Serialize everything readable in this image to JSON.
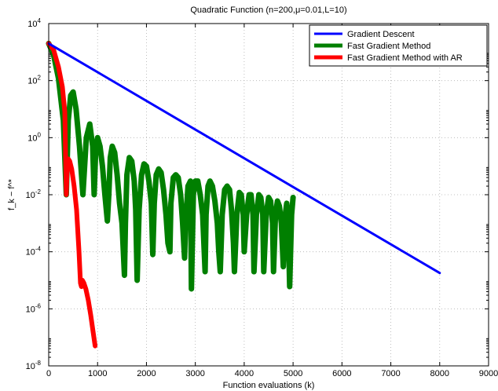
{
  "chart_data": {
    "type": "line",
    "title": "Quadratic Function (n=200,μ=0.01,L=10)",
    "xlabel": "Function evaluations (k)",
    "ylabel": "f_k − f^*",
    "xlim": [
      0,
      9000
    ],
    "ylim": [
      1e-08,
      10000.0
    ],
    "yscale": "log",
    "grid": true,
    "legend_position": "top-right",
    "x_ticks": [
      0,
      1000,
      2000,
      3000,
      4000,
      5000,
      6000,
      7000,
      8000,
      9000
    ],
    "x_tick_labels": [
      "0",
      "1000",
      "2000",
      "3000",
      "4000",
      "5000",
      "6000",
      "7000",
      "8000",
      "9000"
    ],
    "y_ticks": [
      1e-08,
      1e-06,
      0.0001,
      0.01,
      1.0,
      100.0,
      10000.0
    ],
    "y_tick_exponents": [
      "-8",
      "-6",
      "-4",
      "-2",
      "0",
      "2",
      "4"
    ],
    "y_tick_base": "10",
    "series": [
      {
        "name": "Gradient Descent",
        "color": "#0000ff",
        "x": [
          0,
          8000
        ],
        "y": [
          2000,
          1.8e-05
        ]
      },
      {
        "name": "Fast Gradient Method",
        "color": "#007f00",
        "x": [
          0,
          100,
          200,
          300,
          360,
          400,
          450,
          500,
          560,
          630,
          700,
          770,
          840,
          900,
          930,
          960,
          1000,
          1050,
          1100,
          1150,
          1200,
          1230,
          1260,
          1300,
          1350,
          1400,
          1450,
          1500,
          1550,
          1570,
          1600,
          1650,
          1700,
          1750,
          1780,
          1810,
          1850,
          1900,
          1950,
          2000,
          2050,
          2100,
          2130,
          2160,
          2200,
          2250,
          2300,
          2350,
          2400,
          2440,
          2480,
          2500,
          2550,
          2600,
          2650,
          2700,
          2740,
          2780,
          2800,
          2850,
          2900,
          2920,
          2960,
          3000,
          3050,
          3100,
          3150,
          3200,
          3220,
          3260,
          3300,
          3350,
          3400,
          3450,
          3480,
          3510,
          3550,
          3600,
          3650,
          3700,
          3740,
          3780,
          3800,
          3850,
          3900,
          3940,
          3980,
          4000,
          4050,
          4100,
          4140,
          4180,
          4200,
          4250,
          4300,
          4340,
          4380,
          4400,
          4450,
          4500,
          4540,
          4580,
          4600,
          4640,
          4680,
          4720,
          4760,
          4800,
          4840,
          4870,
          4900,
          4930,
          4970,
          5000
        ],
        "y": [
          2000,
          800,
          120,
          4,
          0.01,
          4,
          30,
          40,
          10,
          0.5,
          0.01,
          1,
          3,
          0.5,
          0.01,
          0.3,
          1,
          0.5,
          0.1,
          0.01,
          0.0012,
          0.01,
          0.2,
          0.5,
          0.3,
          0.05,
          0.005,
          0.001,
          1.5e-05,
          0.001,
          0.05,
          0.2,
          0.15,
          0.03,
          0.003,
          1e-05,
          0.003,
          0.05,
          0.12,
          0.1,
          0.03,
          0.005,
          8e-05,
          0.005,
          0.05,
          0.08,
          0.06,
          0.015,
          0.002,
          0.0002,
          0.0001,
          0.005,
          0.04,
          0.05,
          0.04,
          0.01,
          0.001,
          6e-05,
          0.001,
          0.02,
          0.03,
          5e-06,
          0.01,
          0.03,
          0.03,
          0.01,
          0.002,
          2e-05,
          0.002,
          0.02,
          0.03,
          0.02,
          0.006,
          0.001,
          0.0001,
          2e-05,
          0.002,
          0.015,
          0.02,
          0.015,
          0.003,
          0.0002,
          2e-05,
          0.002,
          0.012,
          0.01,
          0.002,
          0.0001,
          0.002,
          0.01,
          0.01,
          0.002,
          2e-05,
          0.002,
          0.01,
          0.008,
          0.002,
          2e-05,
          0.002,
          0.008,
          0.006,
          0.001,
          2e-05,
          0.002,
          0.006,
          0.004,
          0.001,
          3e-05,
          0.002,
          0.005,
          0.001,
          6e-06,
          0.002,
          0.008
        ]
      },
      {
        "name": "Fast Gradient Method with AR",
        "color": "#ff0000",
        "x": [
          0,
          100,
          200,
          280,
          330,
          360,
          380,
          400,
          430,
          470,
          520,
          570,
          620,
          650,
          670,
          690,
          720,
          760,
          810,
          860,
          910,
          950
        ],
        "y": [
          2000,
          1200,
          300,
          60,
          8,
          0.01,
          0.1,
          0.18,
          0.15,
          0.08,
          0.02,
          0.003,
          0.0001,
          8e-06,
          6e-06,
          1e-05,
          8e-06,
          5e-06,
          2e-06,
          6e-07,
          1.5e-07,
          5e-08
        ]
      }
    ]
  }
}
